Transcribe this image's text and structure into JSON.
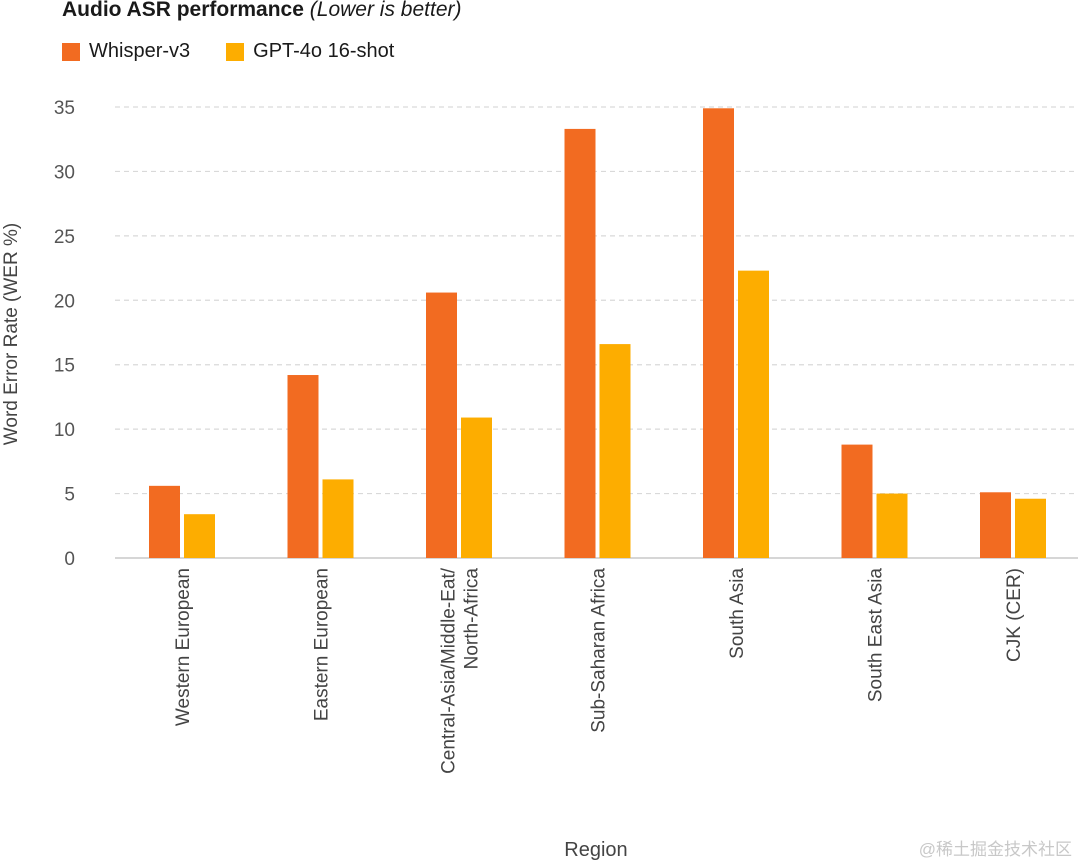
{
  "title": "Audio ASR performance",
  "subtitle": "(Lower is better)",
  "watermark": "@稀土掘金技术社区",
  "chart_data": {
    "type": "bar",
    "categories": [
      "Western European",
      "Eastern European",
      "Central-Asia/Middle-Eat/\nNorth-Africa",
      "Sub-Saharan Africa",
      "South Asia",
      "South East Asia",
      "CJK (CER)"
    ],
    "series": [
      {
        "name": "Whisper-v3",
        "color": "#f26b21",
        "values": [
          5.6,
          14.2,
          20.6,
          33.3,
          34.9,
          8.8,
          5.1
        ]
      },
      {
        "name": "GPT-4o 16-shot",
        "color": "#fdad00",
        "values": [
          3.4,
          6.1,
          10.9,
          16.6,
          22.3,
          5.0,
          4.6
        ]
      }
    ],
    "xlabel": "Region",
    "ylabel": "Word Error Rate (WER %)",
    "ylim": [
      0,
      35
    ],
    "yticks": [
      0,
      5,
      10,
      15,
      20,
      25,
      30,
      35
    ],
    "grid": true,
    "legend": "top-left"
  }
}
